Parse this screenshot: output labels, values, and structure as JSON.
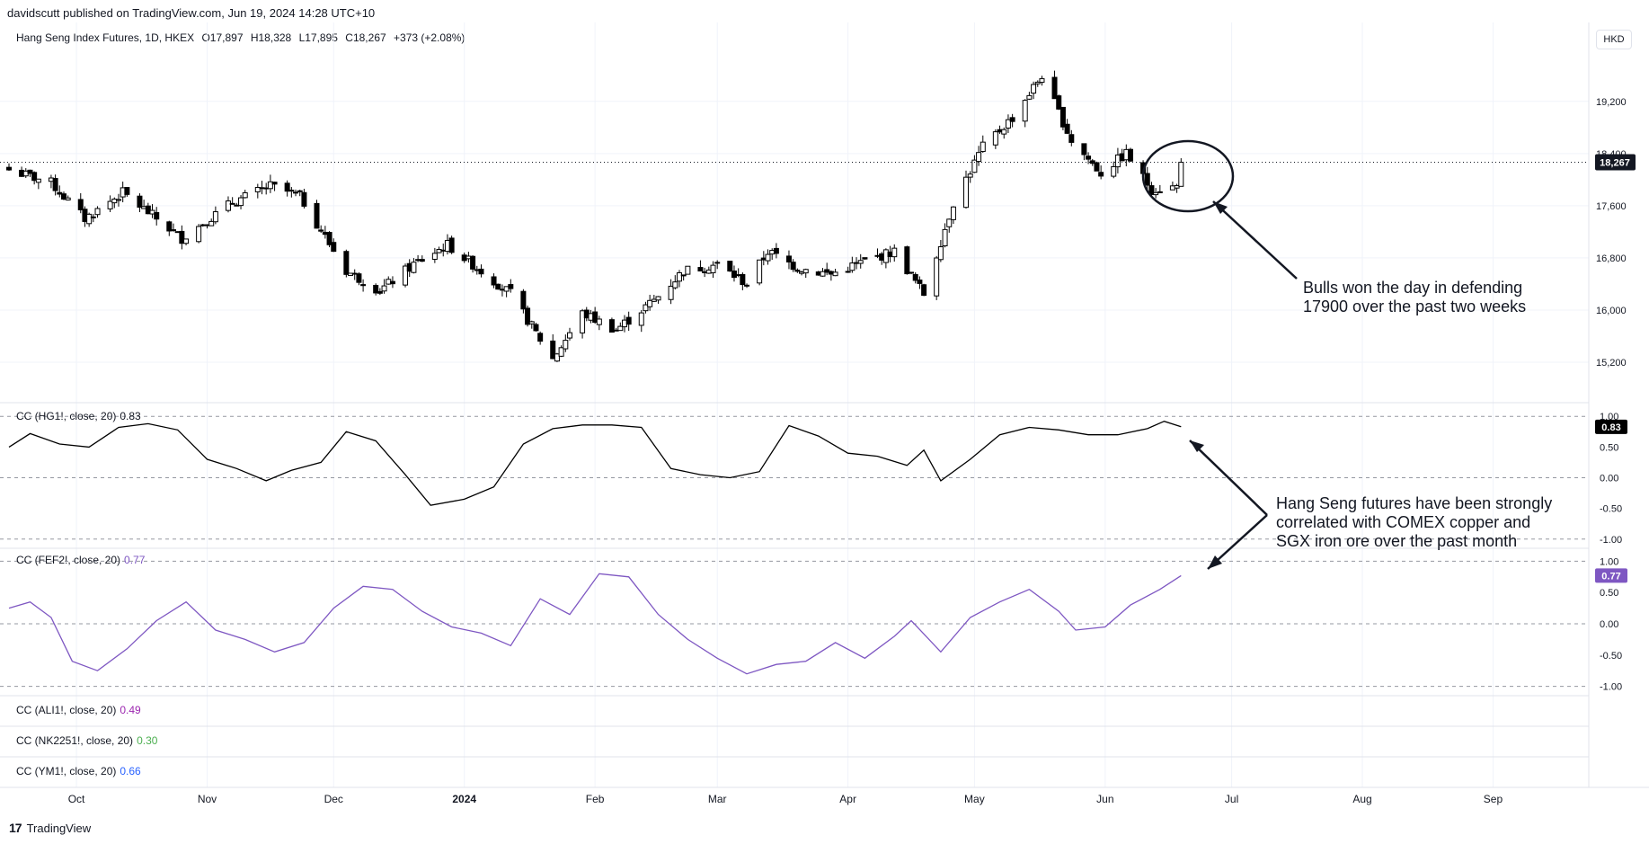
{
  "header": {
    "published": "davidscutt published on TradingView.com, Jun 19, 2024 14:28 UTC+10",
    "symbol": "Hang Seng Index Futures, 1D, HKEX",
    "open": "O17,897",
    "high": "H18,328",
    "low": "L17,895",
    "close": "C18,267",
    "change": "+373 (+2.08%)",
    "currency": "HKD"
  },
  "colors": {
    "up": "#ffffff",
    "down": "#000000",
    "correlation_hg": "#000000",
    "correlation_fef": "#7e57c2",
    "label_ali": "#9c27b0",
    "label_nk": "#4caf50",
    "label_ym": "#2962ff"
  },
  "legends": {
    "hg": {
      "name": "CC (HG1!, close, 20)",
      "value": "0.83"
    },
    "fef": {
      "name": "CC (FEF2!, close, 20)",
      "value": "0.77"
    },
    "ali": {
      "name": "CC (ALI1!, close, 20)",
      "value": "0.49"
    },
    "nk": {
      "name": "CC (NK2251!, close, 20)",
      "value": "0.30"
    },
    "ym": {
      "name": "CC (YM1!, close, 20)",
      "value": "0.66"
    }
  },
  "annotations": {
    "bulls_line1": "Bulls won the day in defending",
    "bulls_line2": "17900 over the past two weeks",
    "corr_line1": "Hang Seng futures have been strongly",
    "corr_line2": "correlated with COMEX copper and",
    "corr_line3": "SGX iron ore over the past month"
  },
  "footer": {
    "logo_mark": "17",
    "logo_text": "TradingView"
  },
  "chart_data": [
    {
      "type": "candlestick",
      "title": "Hang Seng Index Futures, 1D, HKEX",
      "x_tick_labels": [
        "Oct",
        "Nov",
        "Dec",
        "2024",
        "Feb",
        "Mar",
        "Apr",
        "May",
        "Jun",
        "Jul",
        "Aug",
        "Sep"
      ],
      "y_tick_labels": [
        "19,200",
        "18,400",
        "17,600",
        "16,800",
        "16,000",
        "15,200"
      ],
      "ylim": [
        14800,
        19900
      ],
      "last_price": "18,267",
      "close_anchors": [
        {
          "date": "2023-09-15",
          "close": 18150
        },
        {
          "date": "2023-09-25",
          "close": 17950
        },
        {
          "date": "2023-10-03",
          "close": 17400
        },
        {
          "date": "2023-10-12",
          "close": 17800
        },
        {
          "date": "2023-10-26",
          "close": 17100
        },
        {
          "date": "2023-11-07",
          "close": 17650
        },
        {
          "date": "2023-11-16",
          "close": 17900
        },
        {
          "date": "2023-11-23",
          "close": 17750
        },
        {
          "date": "2023-12-04",
          "close": 16600
        },
        {
          "date": "2023-12-12",
          "close": 16300
        },
        {
          "date": "2023-12-20",
          "close": 16700
        },
        {
          "date": "2023-12-28",
          "close": 17000
        },
        {
          "date": "2024-01-03",
          "close": 16700
        },
        {
          "date": "2024-01-12",
          "close": 16250
        },
        {
          "date": "2024-01-22",
          "close": 15250
        },
        {
          "date": "2024-01-29",
          "close": 15950
        },
        {
          "date": "2024-02-06",
          "close": 15700
        },
        {
          "date": "2024-02-15",
          "close": 16150
        },
        {
          "date": "2024-02-22",
          "close": 16600
        },
        {
          "date": "2024-03-01",
          "close": 16700
        },
        {
          "date": "2024-03-08",
          "close": 16400
        },
        {
          "date": "2024-03-13",
          "close": 16900
        },
        {
          "date": "2024-03-20",
          "close": 16650
        },
        {
          "date": "2024-03-28",
          "close": 16550
        },
        {
          "date": "2024-04-05",
          "close": 16750
        },
        {
          "date": "2024-04-12",
          "close": 16900
        },
        {
          "date": "2024-04-19",
          "close": 16250
        },
        {
          "date": "2024-04-26",
          "close": 17650
        },
        {
          "date": "2024-05-03",
          "close": 18500
        },
        {
          "date": "2024-05-10",
          "close": 18950
        },
        {
          "date": "2024-05-17",
          "close": 19600
        },
        {
          "date": "2024-05-24",
          "close": 18600
        },
        {
          "date": "2024-05-31",
          "close": 18100
        },
        {
          "date": "2024-06-06",
          "close": 18400
        },
        {
          "date": "2024-06-12",
          "close": 17850
        },
        {
          "date": "2024-06-18",
          "close": 17890
        },
        {
          "date": "2024-06-19",
          "close": 18267
        }
      ]
    },
    {
      "type": "line",
      "name": "CC (HG1!, close, 20)",
      "y_tick_labels": [
        "1.00",
        "0.50",
        "0.00",
        "-0.50",
        "-1.00"
      ],
      "ylim": [
        -1.15,
        1.15
      ],
      "last_value": "0.83",
      "points": [
        {
          "date": "2023-09-15",
          "y": 0.5
        },
        {
          "date": "2023-09-20",
          "y": 0.72
        },
        {
          "date": "2023-09-27",
          "y": 0.55
        },
        {
          "date": "2023-10-04",
          "y": 0.5
        },
        {
          "date": "2023-10-11",
          "y": 0.82
        },
        {
          "date": "2023-10-18",
          "y": 0.88
        },
        {
          "date": "2023-10-25",
          "y": 0.78
        },
        {
          "date": "2023-11-01",
          "y": 0.3
        },
        {
          "date": "2023-11-08",
          "y": 0.15
        },
        {
          "date": "2023-11-15",
          "y": -0.05
        },
        {
          "date": "2023-11-21",
          "y": 0.12
        },
        {
          "date": "2023-11-28",
          "y": 0.25
        },
        {
          "date": "2023-12-04",
          "y": 0.75
        },
        {
          "date": "2023-12-11",
          "y": 0.6
        },
        {
          "date": "2023-12-18",
          "y": 0.05
        },
        {
          "date": "2023-12-24",
          "y": -0.45
        },
        {
          "date": "2024-01-01",
          "y": -0.35
        },
        {
          "date": "2024-01-08",
          "y": -0.15
        },
        {
          "date": "2024-01-15",
          "y": 0.55
        },
        {
          "date": "2024-01-22",
          "y": 0.8
        },
        {
          "date": "2024-01-29",
          "y": 0.86
        },
        {
          "date": "2024-02-05",
          "y": 0.86
        },
        {
          "date": "2024-02-12",
          "y": 0.82
        },
        {
          "date": "2024-02-19",
          "y": 0.15
        },
        {
          "date": "2024-02-26",
          "y": 0.05
        },
        {
          "date": "2024-03-04",
          "y": 0.0
        },
        {
          "date": "2024-03-11",
          "y": 0.1
        },
        {
          "date": "2024-03-18",
          "y": 0.85
        },
        {
          "date": "2024-03-25",
          "y": 0.68
        },
        {
          "date": "2024-04-01",
          "y": 0.4
        },
        {
          "date": "2024-04-08",
          "y": 0.35
        },
        {
          "date": "2024-04-15",
          "y": 0.2
        },
        {
          "date": "2024-04-19",
          "y": 0.45
        },
        {
          "date": "2024-04-23",
          "y": -0.05
        },
        {
          "date": "2024-04-30",
          "y": 0.3
        },
        {
          "date": "2024-05-07",
          "y": 0.7
        },
        {
          "date": "2024-05-14",
          "y": 0.82
        },
        {
          "date": "2024-05-21",
          "y": 0.78
        },
        {
          "date": "2024-05-28",
          "y": 0.7
        },
        {
          "date": "2024-06-04",
          "y": 0.7
        },
        {
          "date": "2024-06-11",
          "y": 0.8
        },
        {
          "date": "2024-06-15",
          "y": 0.92
        },
        {
          "date": "2024-06-19",
          "y": 0.83
        }
      ]
    },
    {
      "type": "line",
      "name": "CC (FEF2!, close, 20)",
      "y_tick_labels": [
        "1.00",
        "0.50",
        "0.00",
        "-0.50",
        "-1.00"
      ],
      "ylim": [
        -1.15,
        1.15
      ],
      "last_value": "0.77",
      "points": [
        {
          "date": "2023-09-15",
          "y": 0.25
        },
        {
          "date": "2023-09-20",
          "y": 0.35
        },
        {
          "date": "2023-09-25",
          "y": 0.1
        },
        {
          "date": "2023-09-30",
          "y": -0.6
        },
        {
          "date": "2023-10-06",
          "y": -0.75
        },
        {
          "date": "2023-10-13",
          "y": -0.4
        },
        {
          "date": "2023-10-20",
          "y": 0.05
        },
        {
          "date": "2023-10-27",
          "y": 0.35
        },
        {
          "date": "2023-11-03",
          "y": -0.1
        },
        {
          "date": "2023-11-10",
          "y": -0.25
        },
        {
          "date": "2023-11-17",
          "y": -0.45
        },
        {
          "date": "2023-11-24",
          "y": -0.3
        },
        {
          "date": "2023-12-01",
          "y": 0.25
        },
        {
          "date": "2023-12-08",
          "y": 0.6
        },
        {
          "date": "2023-12-15",
          "y": 0.55
        },
        {
          "date": "2023-12-22",
          "y": 0.2
        },
        {
          "date": "2023-12-29",
          "y": -0.05
        },
        {
          "date": "2024-01-05",
          "y": -0.15
        },
        {
          "date": "2024-01-12",
          "y": -0.35
        },
        {
          "date": "2024-01-19",
          "y": 0.4
        },
        {
          "date": "2024-01-26",
          "y": 0.15
        },
        {
          "date": "2024-02-02",
          "y": 0.8
        },
        {
          "date": "2024-02-09",
          "y": 0.75
        },
        {
          "date": "2024-02-16",
          "y": 0.15
        },
        {
          "date": "2024-02-23",
          "y": -0.25
        },
        {
          "date": "2024-03-01",
          "y": -0.55
        },
        {
          "date": "2024-03-08",
          "y": -0.8
        },
        {
          "date": "2024-03-15",
          "y": -0.65
        },
        {
          "date": "2024-03-22",
          "y": -0.6
        },
        {
          "date": "2024-03-29",
          "y": -0.3
        },
        {
          "date": "2024-04-05",
          "y": -0.55
        },
        {
          "date": "2024-04-12",
          "y": -0.2
        },
        {
          "date": "2024-04-16",
          "y": 0.05
        },
        {
          "date": "2024-04-23",
          "y": -0.45
        },
        {
          "date": "2024-04-30",
          "y": 0.1
        },
        {
          "date": "2024-05-07",
          "y": 0.35
        },
        {
          "date": "2024-05-14",
          "y": 0.55
        },
        {
          "date": "2024-05-21",
          "y": 0.2
        },
        {
          "date": "2024-05-25",
          "y": -0.1
        },
        {
          "date": "2024-06-01",
          "y": -0.05
        },
        {
          "date": "2024-06-07",
          "y": 0.3
        },
        {
          "date": "2024-06-14",
          "y": 0.55
        },
        {
          "date": "2024-06-19",
          "y": 0.77
        }
      ]
    }
  ]
}
